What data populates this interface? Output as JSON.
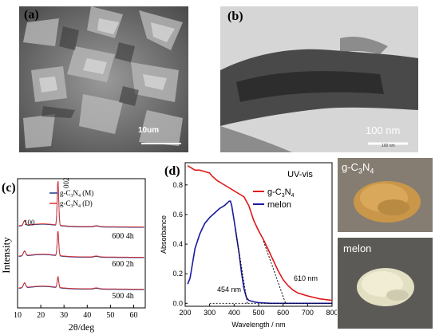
{
  "panels": {
    "a": {
      "label": "(a)",
      "scale_bar": "10um"
    },
    "b": {
      "label": "(b)",
      "scale_bar": "100 nm",
      "scale_bar_small": "100 nm"
    },
    "c": {
      "label": "(c)"
    },
    "d": {
      "label": "(d)"
    }
  },
  "photos": {
    "top_label_main": "g-C",
    "top_label_sub1": "3",
    "top_label_mid": "N",
    "top_label_sub2": "4",
    "bottom_label": "melon"
  },
  "chart_data": [
    {
      "type": "line",
      "panel": "c",
      "xlabel": "2θ/deg",
      "ylabel": "Intensity",
      "xlim": [
        10,
        65
      ],
      "xticks": [
        10,
        20,
        30,
        40,
        50,
        60
      ],
      "legend": [
        {
          "name": "g-C3N4 (M)",
          "color": "#1f3c88"
        },
        {
          "name": "g-C3N4 (D)",
          "color": "#e03030"
        }
      ],
      "peak_labels": [
        "100",
        "002"
      ],
      "trace_labels": [
        "600 4h",
        "600 2h",
        "500 4h"
      ]
    },
    {
      "type": "line",
      "panel": "d",
      "title": "UV-vis",
      "xlabel": "Wavelength / nm",
      "ylabel": "Absorbance",
      "xlim": [
        200,
        800
      ],
      "ylim": [
        -0.02,
        0.95
      ],
      "xticks": [
        200,
        300,
        400,
        500,
        600,
        700,
        800
      ],
      "yticks": [
        0.0,
        0.2,
        0.4,
        0.6,
        0.8
      ],
      "series": [
        {
          "name": "g-C3N4",
          "color": "#e01818",
          "x": [
            210,
            220,
            240,
            260,
            280,
            300,
            310,
            330,
            350,
            380,
            400,
            420,
            440,
            460,
            480,
            500,
            520,
            540,
            560,
            580,
            600,
            620,
            640,
            660,
            700,
            750,
            800
          ],
          "y": [
            0.93,
            0.92,
            0.9,
            0.9,
            0.89,
            0.88,
            0.86,
            0.83,
            0.81,
            0.78,
            0.76,
            0.74,
            0.72,
            0.66,
            0.56,
            0.49,
            0.43,
            0.36,
            0.29,
            0.22,
            0.16,
            0.12,
            0.09,
            0.07,
            0.05,
            0.03,
            0.02
          ]
        },
        {
          "name": "melon",
          "color": "#1a1aa0",
          "x": [
            210,
            220,
            240,
            260,
            280,
            300,
            320,
            340,
            360,
            380,
            385,
            390,
            400,
            410,
            420,
            430,
            440,
            450,
            460,
            480,
            500,
            550,
            600,
            700,
            800
          ],
          "y": [
            0.13,
            0.17,
            0.37,
            0.47,
            0.54,
            0.58,
            0.61,
            0.64,
            0.66,
            0.69,
            0.69,
            0.66,
            0.56,
            0.45,
            0.34,
            0.21,
            0.1,
            0.04,
            0.02,
            0.01,
            0.005,
            0.0,
            0.0,
            0.0,
            0.0
          ]
        }
      ],
      "annotations": [
        "454 nm",
        "610 nm"
      ]
    }
  ]
}
